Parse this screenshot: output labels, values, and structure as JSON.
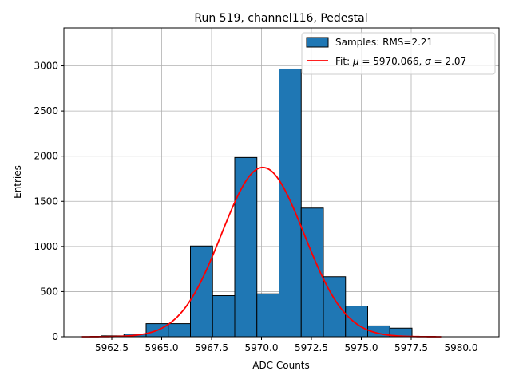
{
  "chart_data": {
    "type": "bar",
    "title": "Run 519, channel116, Pedestal",
    "xlabel": "ADC Counts",
    "ylabel": "Entries",
    "xlim": [
      5960.1,
      5981.9
    ],
    "ylim": [
      0,
      3420
    ],
    "grid": true,
    "legend_position": "top-right",
    "x_ticks": [
      5962.5,
      5965.0,
      5967.5,
      5970.0,
      5972.5,
      5975.0,
      5977.5,
      5980.0
    ],
    "x_tick_labels": [
      "5962.5",
      "5965.0",
      "5967.5",
      "5970.0",
      "5972.5",
      "5975.0",
      "5977.5",
      "5980.0"
    ],
    "y_ticks": [
      0,
      500,
      1000,
      1500,
      2000,
      2500,
      3000
    ],
    "y_tick_labels": [
      "0",
      "500",
      "1000",
      "1500",
      "2000",
      "2500",
      "3000"
    ],
    "series": [
      {
        "name": "Samples: RMS=2.21",
        "kind": "histogram",
        "color": "#1f77b4",
        "edge_color": "#000000",
        "bins": [
          {
            "x0": 5962.0,
            "x1": 5963.11,
            "value": 10
          },
          {
            "x0": 5963.11,
            "x1": 5964.22,
            "value": 30
          },
          {
            "x0": 5964.22,
            "x1": 5965.33,
            "value": 145
          },
          {
            "x0": 5965.33,
            "x1": 5966.44,
            "value": 145
          },
          {
            "x0": 5966.44,
            "x1": 5967.55,
            "value": 1005
          },
          {
            "x0": 5967.55,
            "x1": 5968.66,
            "value": 455
          },
          {
            "x0": 5968.66,
            "x1": 5969.77,
            "value": 1985
          },
          {
            "x0": 5969.77,
            "x1": 5970.88,
            "value": 475
          },
          {
            "x0": 5970.88,
            "x1": 5971.99,
            "value": 2965
          },
          {
            "x0": 5971.99,
            "x1": 5973.1,
            "value": 1425
          },
          {
            "x0": 5973.1,
            "x1": 5974.21,
            "value": 665
          },
          {
            "x0": 5974.21,
            "x1": 5975.32,
            "value": 340
          },
          {
            "x0": 5975.32,
            "x1": 5976.43,
            "value": 120
          },
          {
            "x0": 5976.43,
            "x1": 5977.54,
            "value": 95
          }
        ]
      },
      {
        "name": "Fit: μ = 5970.066, σ = 2.07",
        "legend_prefix": "Fit: ",
        "legend_mu_symbol": "μ",
        "legend_mu_text": " = 5970.066, ",
        "legend_sigma_symbol": "σ",
        "legend_sigma_text": " = 2.07",
        "kind": "gaussian_fit",
        "color": "#ff0000",
        "mu": 5970.066,
        "sigma": 2.07,
        "amplitude": 1875,
        "x_range": [
          5961.0,
          5979.0
        ]
      }
    ]
  }
}
